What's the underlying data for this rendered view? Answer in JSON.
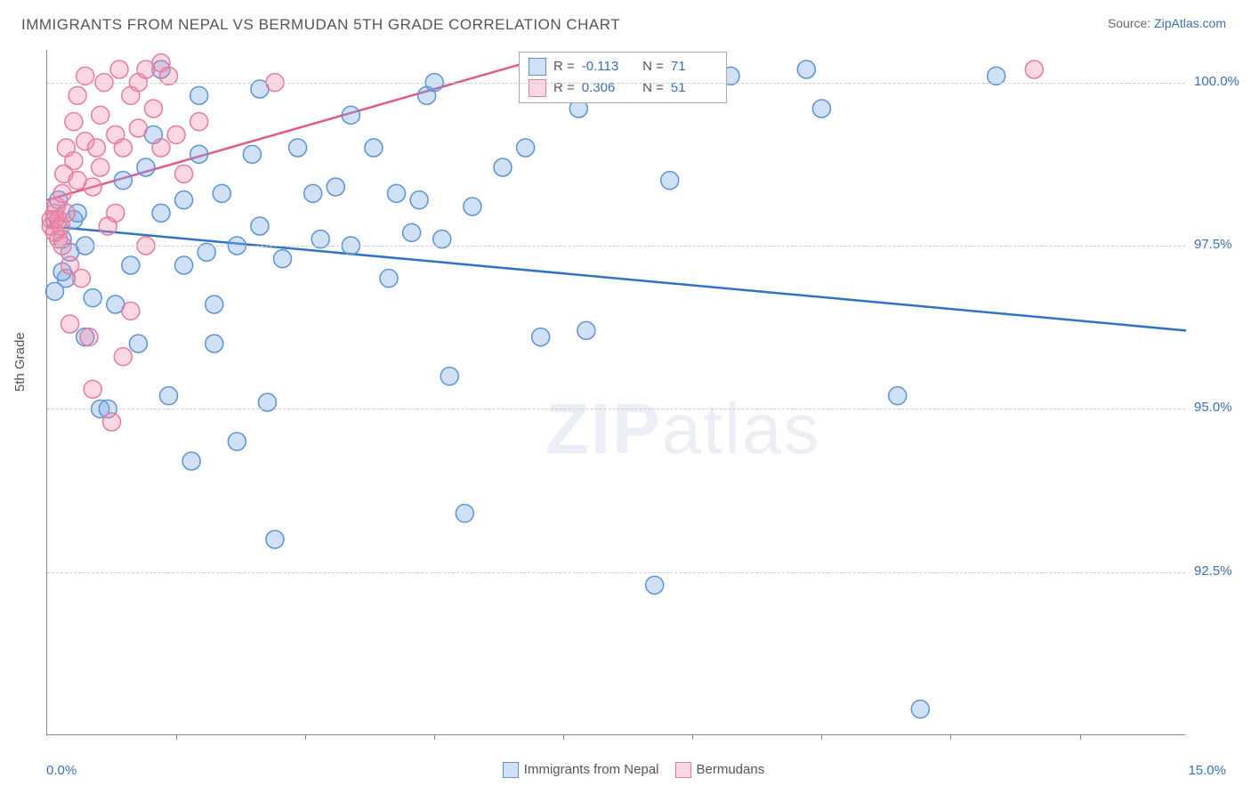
{
  "title": "IMMIGRANTS FROM NEPAL VS BERMUDAN 5TH GRADE CORRELATION CHART",
  "source_prefix": "Source: ",
  "source_link": "ZipAtlas.com",
  "y_axis_label": "5th Grade",
  "watermark_bold": "ZIP",
  "watermark_light": "atlas",
  "chart": {
    "type": "scatter",
    "xlim": [
      0,
      15
    ],
    "ylim": [
      90,
      100.5
    ],
    "y_ticks": [
      92.5,
      95.0,
      97.5,
      100.0
    ],
    "y_tick_labels": [
      "92.5%",
      "95.0%",
      "97.5%",
      "100.0%"
    ],
    "x_tick_positions": [
      1.7,
      3.4,
      5.1,
      6.8,
      8.5,
      10.2,
      11.9,
      13.6
    ],
    "x_left_label": "0.0%",
    "x_right_label": "15.0%",
    "grid_color": "#cccccc",
    "axis_color": "#888888",
    "background_color": "#ffffff",
    "marker_radius": 10,
    "marker_stroke_width": 1.5,
    "line_width": 2.5,
    "series": [
      {
        "name": "Immigrants from Nepal",
        "fill": "rgba(120,170,230,0.35)",
        "stroke": "#5a93d6",
        "line_color": "#2f74c4",
        "R": "-0.113",
        "N": "71",
        "trend_line": {
          "x1": 0,
          "y1": 97.8,
          "x2": 15,
          "y2": 96.2
        },
        "points": [
          [
            0.1,
            97.9
          ],
          [
            0.2,
            97.6
          ],
          [
            0.15,
            98.2
          ],
          [
            0.3,
            97.4
          ],
          [
            0.25,
            97.0
          ],
          [
            0.1,
            96.8
          ],
          [
            0.2,
            97.1
          ],
          [
            0.35,
            97.9
          ],
          [
            0.4,
            98.0
          ],
          [
            0.5,
            97.5
          ],
          [
            0.6,
            96.7
          ],
          [
            0.5,
            96.1
          ],
          [
            0.7,
            95.0
          ],
          [
            0.8,
            95.0
          ],
          [
            0.9,
            96.6
          ],
          [
            1.0,
            98.5
          ],
          [
            1.1,
            97.2
          ],
          [
            1.2,
            96.0
          ],
          [
            1.3,
            98.7
          ],
          [
            1.4,
            99.2
          ],
          [
            1.5,
            100.2
          ],
          [
            1.5,
            98.0
          ],
          [
            1.6,
            95.2
          ],
          [
            1.8,
            97.2
          ],
          [
            1.8,
            98.2
          ],
          [
            1.9,
            94.2
          ],
          [
            2.0,
            99.8
          ],
          [
            2.0,
            98.9
          ],
          [
            2.1,
            97.4
          ],
          [
            2.2,
            96.6
          ],
          [
            2.2,
            96.0
          ],
          [
            2.3,
            98.3
          ],
          [
            2.5,
            94.5
          ],
          [
            2.5,
            97.5
          ],
          [
            2.7,
            98.9
          ],
          [
            2.8,
            99.9
          ],
          [
            2.8,
            97.8
          ],
          [
            2.9,
            95.1
          ],
          [
            3.0,
            93.0
          ],
          [
            3.1,
            97.3
          ],
          [
            3.3,
            99.0
          ],
          [
            3.5,
            98.3
          ],
          [
            3.6,
            97.6
          ],
          [
            3.8,
            98.4
          ],
          [
            4.0,
            99.5
          ],
          [
            4.0,
            97.5
          ],
          [
            4.3,
            99.0
          ],
          [
            4.5,
            97.0
          ],
          [
            4.6,
            98.3
          ],
          [
            4.8,
            97.7
          ],
          [
            4.9,
            98.2
          ],
          [
            5.0,
            99.8
          ],
          [
            5.1,
            100.0
          ],
          [
            5.2,
            97.6
          ],
          [
            5.3,
            95.5
          ],
          [
            5.5,
            93.4
          ],
          [
            5.6,
            98.1
          ],
          [
            6.0,
            98.7
          ],
          [
            6.3,
            99.0
          ],
          [
            6.5,
            96.1
          ],
          [
            7.0,
            99.6
          ],
          [
            7.1,
            96.2
          ],
          [
            8.0,
            92.3
          ],
          [
            8.2,
            98.5
          ],
          [
            8.4,
            100.0
          ],
          [
            9.0,
            100.1
          ],
          [
            10.0,
            100.2
          ],
          [
            10.2,
            99.6
          ],
          [
            11.2,
            95.2
          ],
          [
            11.5,
            90.4
          ],
          [
            12.5,
            100.1
          ]
        ]
      },
      {
        "name": "Bermudans",
        "fill": "rgba(244,140,170,0.35)",
        "stroke": "#e77aa0",
        "line_color": "#e05a8a",
        "R": "0.306",
        "N": "51",
        "trend_line": {
          "x1": 0,
          "y1": 98.2,
          "x2": 6.6,
          "y2": 100.4
        },
        "points": [
          [
            0.05,
            97.8
          ],
          [
            0.05,
            97.9
          ],
          [
            0.1,
            97.7
          ],
          [
            0.1,
            98.0
          ],
          [
            0.12,
            98.1
          ],
          [
            0.15,
            97.6
          ],
          [
            0.15,
            97.9
          ],
          [
            0.18,
            97.8
          ],
          [
            0.2,
            98.3
          ],
          [
            0.2,
            97.5
          ],
          [
            0.22,
            98.6
          ],
          [
            0.25,
            98.0
          ],
          [
            0.25,
            99.0
          ],
          [
            0.3,
            97.2
          ],
          [
            0.3,
            96.3
          ],
          [
            0.35,
            98.8
          ],
          [
            0.35,
            99.4
          ],
          [
            0.4,
            98.5
          ],
          [
            0.4,
            99.8
          ],
          [
            0.45,
            97.0
          ],
          [
            0.5,
            99.1
          ],
          [
            0.5,
            100.1
          ],
          [
            0.55,
            96.1
          ],
          [
            0.6,
            98.4
          ],
          [
            0.6,
            95.3
          ],
          [
            0.65,
            99.0
          ],
          [
            0.7,
            98.7
          ],
          [
            0.7,
            99.5
          ],
          [
            0.75,
            100.0
          ],
          [
            0.8,
            97.8
          ],
          [
            0.85,
            94.8
          ],
          [
            0.9,
            99.2
          ],
          [
            0.9,
            98.0
          ],
          [
            0.95,
            100.2
          ],
          [
            1.0,
            99.0
          ],
          [
            1.0,
            95.8
          ],
          [
            1.1,
            99.8
          ],
          [
            1.1,
            96.5
          ],
          [
            1.2,
            100.0
          ],
          [
            1.2,
            99.3
          ],
          [
            1.3,
            100.2
          ],
          [
            1.3,
            97.5
          ],
          [
            1.4,
            99.6
          ],
          [
            1.5,
            99.0
          ],
          [
            1.5,
            100.3
          ],
          [
            1.6,
            100.1
          ],
          [
            1.7,
            99.2
          ],
          [
            1.8,
            98.6
          ],
          [
            2.0,
            99.4
          ],
          [
            3.0,
            100.0
          ],
          [
            13.0,
            100.2
          ]
        ]
      }
    ]
  },
  "legend_labels": [
    "Immigrants from Nepal",
    "Bermudans"
  ],
  "stats_labels": {
    "R_prefix": "R = ",
    "N_prefix": "N = "
  }
}
